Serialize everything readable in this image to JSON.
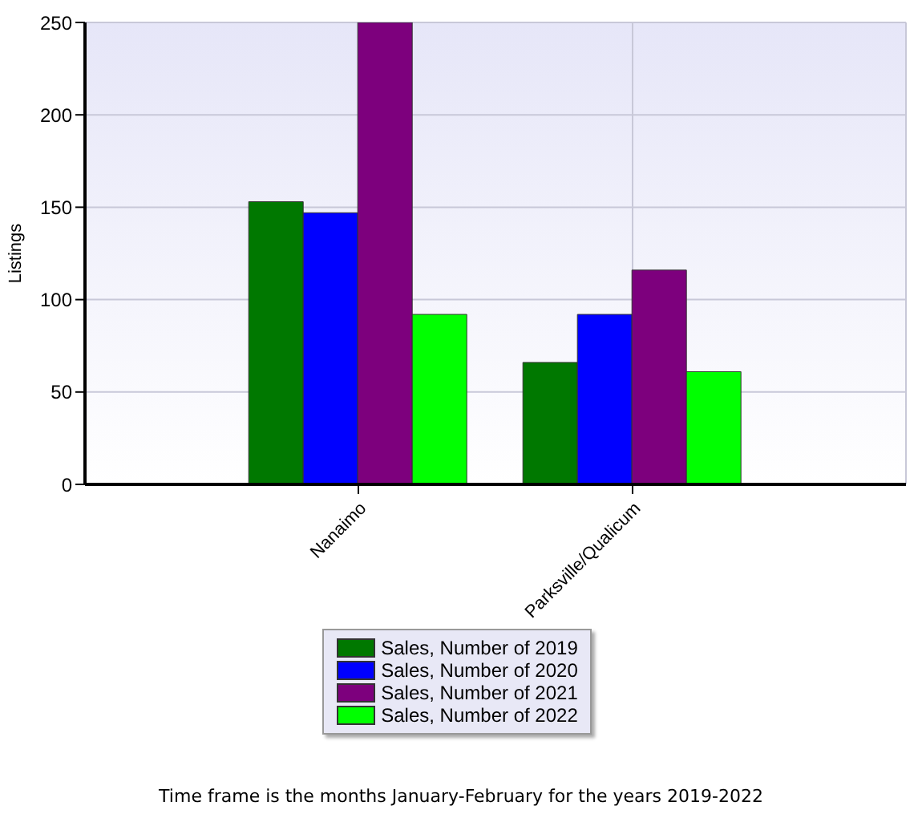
{
  "chart_data": {
    "type": "bar",
    "ylabel": "Listings",
    "categories": [
      "Nanaimo",
      "Parksville/Qualicum"
    ],
    "series": [
      {
        "name": "Sales, Number of 2019",
        "color": "#007800",
        "values": [
          153,
          66
        ]
      },
      {
        "name": "Sales, Number of 2020",
        "color": "#0000ff",
        "values": [
          147,
          92
        ]
      },
      {
        "name": "Sales, Number of 2021",
        "color": "#7d007d",
        "values": [
          250,
          116
        ]
      },
      {
        "name": "Sales, Number of 2022",
        "color": "#00ff00",
        "values": [
          92,
          61
        ]
      }
    ],
    "ylim": [
      0,
      250
    ],
    "yticks": [
      0,
      50,
      100,
      150,
      200,
      250
    ],
    "grid": true,
    "legend": "bottom",
    "annotations": [
      "Time frame is the months January-February for the years 2019-2022"
    ]
  }
}
